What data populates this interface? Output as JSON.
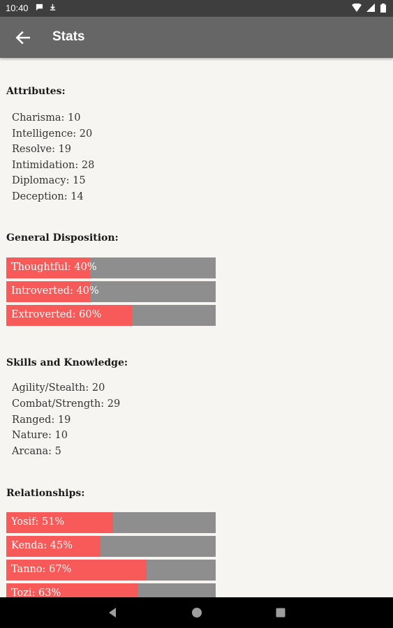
{
  "status_bar": {
    "time": "10:40"
  },
  "app_bar": {
    "title": "Stats"
  },
  "attributes": {
    "heading": "Attributes:",
    "items": [
      "Charisma: 10",
      "Intelligence: 20",
      "Resolve: 19",
      "Intimidation: 28",
      "Diplomacy: 15",
      "Deception: 14"
    ]
  },
  "disposition": {
    "heading": "General Disposition:",
    "bars": [
      {
        "label": "Thoughtful: 40%",
        "percent": 40
      },
      {
        "label": "Introverted: 40%",
        "percent": 40
      },
      {
        "label": "Extroverted: 60%",
        "percent": 60
      }
    ]
  },
  "skills": {
    "heading": "Skills and Knowledge:",
    "items": [
      "Agility/Stealth: 20",
      "Combat/Strength: 29",
      "Ranged: 19",
      "Nature: 10",
      "Arcana: 5"
    ]
  },
  "relationships": {
    "heading": "Relationships:",
    "bars": [
      {
        "label": "Yosif: 51%",
        "percent": 51
      },
      {
        "label": "Kenda: 45%",
        "percent": 45
      },
      {
        "label": "Tanno: 67%",
        "percent": 67
      },
      {
        "label": "Tozi: 63%",
        "percent": 63
      }
    ]
  },
  "colors": {
    "fill": "#f85a5a",
    "track": "#8e8e8e",
    "app_bar": "#666666",
    "background": "#f7f5f1"
  },
  "icons": {
    "back": "arrow-left-icon",
    "nav": [
      "back-triangle-icon",
      "home-circle-icon",
      "recents-square-icon"
    ]
  }
}
